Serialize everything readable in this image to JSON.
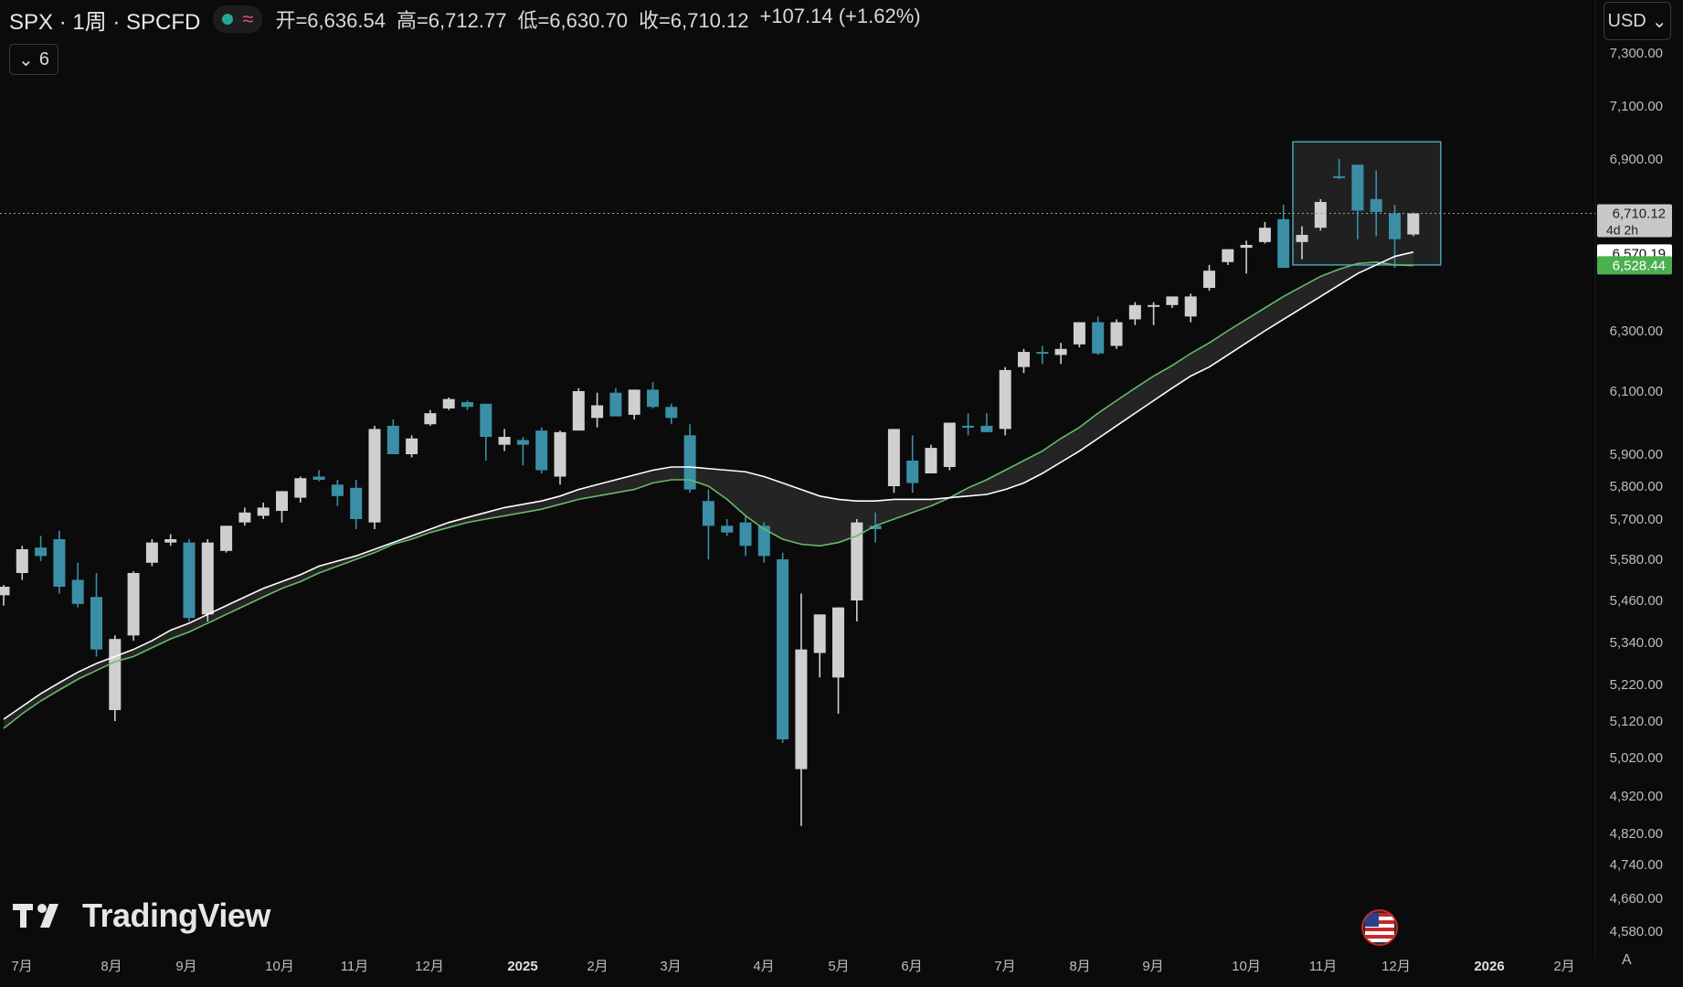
{
  "header": {
    "symbol": "SPX · 1周 · SPCFD",
    "open": "开=6,636.54",
    "high": "高=6,712.77",
    "low": "低=6,630.70",
    "close": "收=6,710.12",
    "change": "+107.14 (+1.62%)",
    "status_icons": [
      "market-open-dot-icon",
      "wave-icon"
    ]
  },
  "indicator_collapse_label": "6",
  "currency_button": "USD",
  "brand": "TradingView",
  "autoscale_label": "A",
  "colors": {
    "background": "#0b0b0b",
    "up_candle": "#cfcfcf",
    "down_candle": "#3a8fa6",
    "ma_fast": "#ffffff",
    "ma_slow": "#66bb6a",
    "box": "#4aa3b8"
  },
  "chart_data": {
    "type": "candlestick",
    "interval": "1周",
    "x_labels": [
      "7月",
      "8月",
      "9月",
      "10月",
      "11月",
      "12月",
      "2025",
      "2月",
      "3月",
      "4月",
      "5月",
      "6月",
      "7月",
      "8月",
      "9月",
      "10月",
      "11月",
      "12月",
      "2026",
      "2月"
    ],
    "y_ticks": [
      7300,
      7100,
      6900,
      6300,
      6100,
      5900,
      5800,
      5700,
      5580,
      5460,
      5340,
      5220,
      5120,
      5020,
      4920,
      4820,
      4740,
      4660,
      4580
    ],
    "y_tick_labels": [
      "7,300.00",
      "7,100.00",
      "6,900.00",
      "6,300.00",
      "6,100.00",
      "5,900.00",
      "5,800.00",
      "5,700.00",
      "5,580.00",
      "5,460.00",
      "5,340.00",
      "5,220.00",
      "5,120.00",
      "5,020.00",
      "4,920.00",
      "4,820.00",
      "4,740.00",
      "4,660.00",
      "4,580.00"
    ],
    "candles": [
      {
        "o": 5475,
        "h": 5505,
        "l": 5445,
        "c": 5500
      },
      {
        "o": 5540,
        "h": 5620,
        "l": 5520,
        "c": 5610
      },
      {
        "o": 5615,
        "h": 5650,
        "l": 5575,
        "c": 5590
      },
      {
        "o": 5640,
        "h": 5665,
        "l": 5480,
        "c": 5500
      },
      {
        "o": 5520,
        "h": 5570,
        "l": 5440,
        "c": 5450
      },
      {
        "o": 5470,
        "h": 5540,
        "l": 5300,
        "c": 5320
      },
      {
        "o": 5150,
        "h": 5360,
        "l": 5120,
        "c": 5350
      },
      {
        "o": 5360,
        "h": 5545,
        "l": 5345,
        "c": 5540
      },
      {
        "o": 5570,
        "h": 5640,
        "l": 5560,
        "c": 5630
      },
      {
        "o": 5630,
        "h": 5655,
        "l": 5620,
        "c": 5640
      },
      {
        "o": 5630,
        "h": 5640,
        "l": 5400,
        "c": 5410
      },
      {
        "o": 5420,
        "h": 5640,
        "l": 5400,
        "c": 5630
      },
      {
        "o": 5605,
        "h": 5680,
        "l": 5600,
        "c": 5680
      },
      {
        "o": 5690,
        "h": 5735,
        "l": 5680,
        "c": 5720
      },
      {
        "o": 5710,
        "h": 5750,
        "l": 5700,
        "c": 5735
      },
      {
        "o": 5725,
        "h": 5780,
        "l": 5690,
        "c": 5785
      },
      {
        "o": 5765,
        "h": 5830,
        "l": 5750,
        "c": 5825
      },
      {
        "o": 5830,
        "h": 5850,
        "l": 5815,
        "c": 5820
      },
      {
        "o": 5805,
        "h": 5820,
        "l": 5740,
        "c": 5770
      },
      {
        "o": 5795,
        "h": 5820,
        "l": 5670,
        "c": 5700
      },
      {
        "o": 5690,
        "h": 5990,
        "l": 5670,
        "c": 5980
      },
      {
        "o": 5990,
        "h": 6010,
        "l": 5905,
        "c": 5900
      },
      {
        "o": 5900,
        "h": 5960,
        "l": 5890,
        "c": 5950
      },
      {
        "o": 5995,
        "h": 6040,
        "l": 5990,
        "c": 6030
      },
      {
        "o": 6045,
        "h": 6080,
        "l": 6040,
        "c": 6075
      },
      {
        "o": 6065,
        "h": 6070,
        "l": 6040,
        "c": 6050
      },
      {
        "o": 6060,
        "h": 6045,
        "l": 5880,
        "c": 5955
      },
      {
        "o": 5930,
        "h": 5980,
        "l": 5910,
        "c": 5955
      },
      {
        "o": 5945,
        "h": 5955,
        "l": 5865,
        "c": 5930
      },
      {
        "o": 5975,
        "h": 5985,
        "l": 5840,
        "c": 5850
      },
      {
        "o": 5830,
        "h": 5975,
        "l": 5805,
        "c": 5970
      },
      {
        "o": 5975,
        "h": 6110,
        "l": 5975,
        "c": 6100
      },
      {
        "o": 6015,
        "h": 6095,
        "l": 5985,
        "c": 6055
      },
      {
        "o": 6095,
        "h": 6110,
        "l": 6020,
        "c": 6020
      },
      {
        "o": 6025,
        "h": 6095,
        "l": 6010,
        "c": 6105
      },
      {
        "o": 6105,
        "h": 6130,
        "l": 6045,
        "c": 6050
      },
      {
        "o": 6050,
        "h": 6060,
        "l": 5995,
        "c": 6015
      },
      {
        "o": 5960,
        "h": 5995,
        "l": 5780,
        "c": 5790
      },
      {
        "o": 5755,
        "h": 5790,
        "l": 5580,
        "c": 5680
      },
      {
        "o": 5680,
        "h": 5700,
        "l": 5650,
        "c": 5660
      },
      {
        "o": 5690,
        "h": 5710,
        "l": 5590,
        "c": 5620
      },
      {
        "o": 5680,
        "h": 5690,
        "l": 5570,
        "c": 5590
      },
      {
        "o": 5580,
        "h": 5600,
        "l": 5060,
        "c": 5070
      },
      {
        "o": 4990,
        "h": 5480,
        "l": 4840,
        "c": 5320
      },
      {
        "o": 5310,
        "h": 5420,
        "l": 5240,
        "c": 5420
      },
      {
        "o": 5240,
        "h": 5440,
        "l": 5140,
        "c": 5440
      },
      {
        "o": 5460,
        "h": 5700,
        "l": 5400,
        "c": 5690
      },
      {
        "o": 5680,
        "h": 5720,
        "l": 5630,
        "c": 5670
      },
      {
        "o": 5800,
        "h": 5980,
        "l": 5780,
        "c": 5980
      },
      {
        "o": 5880,
        "h": 5960,
        "l": 5780,
        "c": 5810
      },
      {
        "o": 5840,
        "h": 5930,
        "l": 5840,
        "c": 5920
      },
      {
        "o": 5860,
        "h": 6000,
        "l": 5850,
        "c": 6000
      },
      {
        "o": 5990,
        "h": 6030,
        "l": 5960,
        "c": 5985
      },
      {
        "o": 5990,
        "h": 6030,
        "l": 5970,
        "c": 5970
      },
      {
        "o": 5980,
        "h": 6180,
        "l": 5960,
        "c": 6170
      },
      {
        "o": 6180,
        "h": 6240,
        "l": 6160,
        "c": 6230
      },
      {
        "o": 6230,
        "h": 6250,
        "l": 6190,
        "c": 6225
      },
      {
        "o": 6220,
        "h": 6260,
        "l": 6190,
        "c": 6240
      },
      {
        "o": 6255,
        "h": 6330,
        "l": 6245,
        "c": 6330
      },
      {
        "o": 6330,
        "h": 6350,
        "l": 6220,
        "c": 6225
      },
      {
        "o": 6250,
        "h": 6340,
        "l": 6240,
        "c": 6330
      },
      {
        "o": 6340,
        "h": 6400,
        "l": 6320,
        "c": 6390
      },
      {
        "o": 6385,
        "h": 6400,
        "l": 6320,
        "c": 6390
      },
      {
        "o": 6390,
        "h": 6420,
        "l": 6380,
        "c": 6420
      },
      {
        "o": 6350,
        "h": 6430,
        "l": 6330,
        "c": 6420
      },
      {
        "o": 6450,
        "h": 6530,
        "l": 6440,
        "c": 6510
      },
      {
        "o": 6540,
        "h": 6585,
        "l": 6530,
        "c": 6585
      },
      {
        "o": 6590,
        "h": 6615,
        "l": 6500,
        "c": 6600
      },
      {
        "o": 6610,
        "h": 6680,
        "l": 6605,
        "c": 6660
      },
      {
        "o": 6690,
        "h": 6740,
        "l": 6530,
        "c": 6520
      },
      {
        "o": 6610,
        "h": 6665,
        "l": 6550,
        "c": 6635
      },
      {
        "o": 6660,
        "h": 6760,
        "l": 6650,
        "c": 6750
      },
      {
        "o": 6840,
        "h": 6900,
        "l": 6830,
        "c": 6835
      },
      {
        "o": 6880,
        "h": 6870,
        "l": 6620,
        "c": 6720
      },
      {
        "o": 6760,
        "h": 6860,
        "l": 6630,
        "c": 6715
      },
      {
        "o": 6710,
        "h": 6740,
        "l": 6520,
        "c": 6620
      },
      {
        "o": 6636.54,
        "h": 6712.77,
        "l": 6630.7,
        "c": 6710.12
      }
    ],
    "ma_fast": [
      5125,
      5160,
      5195,
      5225,
      5255,
      5280,
      5300,
      5320,
      5345,
      5375,
      5395,
      5420,
      5445,
      5470,
      5495,
      5515,
      5535,
      5560,
      5575,
      5590,
      5610,
      5630,
      5650,
      5670,
      5690,
      5705,
      5720,
      5735,
      5745,
      5755,
      5770,
      5790,
      5805,
      5820,
      5835,
      5850,
      5860,
      5860,
      5855,
      5850,
      5845,
      5830,
      5810,
      5790,
      5770,
      5760,
      5755,
      5755,
      5760,
      5760,
      5760,
      5765,
      5770,
      5775,
      5790,
      5810,
      5840,
      5875,
      5910,
      5950,
      5990,
      6030,
      6070,
      6110,
      6150,
      6180,
      6220,
      6260,
      6300,
      6340,
      6380,
      6420,
      6460,
      6500,
      6530,
      6560,
      6575
    ],
    "ma_slow": [
      5100,
      5140,
      5175,
      5205,
      5235,
      5260,
      5285,
      5300,
      5325,
      5350,
      5370,
      5395,
      5420,
      5445,
      5470,
      5495,
      5515,
      5540,
      5560,
      5580,
      5600,
      5625,
      5640,
      5660,
      5675,
      5690,
      5700,
      5710,
      5720,
      5730,
      5745,
      5760,
      5770,
      5780,
      5790,
      5810,
      5820,
      5820,
      5800,
      5760,
      5710,
      5670,
      5640,
      5625,
      5620,
      5630,
      5650,
      5680,
      5700,
      5720,
      5740,
      5765,
      5795,
      5820,
      5850,
      5880,
      5910,
      5950,
      5985,
      6030,
      6070,
      6110,
      6150,
      6185,
      6225,
      6260,
      6300,
      6340,
      6380,
      6420,
      6455,
      6490,
      6515,
      6535,
      6540,
      6530,
      6528
    ],
    "last_price_label": "6,710.12",
    "countdown_label": "4d 2h",
    "ma_fast_label": "6,570.19",
    "ma_slow_label": "6,528.44",
    "last_price": 6710.12,
    "ma_fast_last": 6570.19,
    "ma_slow_last": 6528.44
  }
}
